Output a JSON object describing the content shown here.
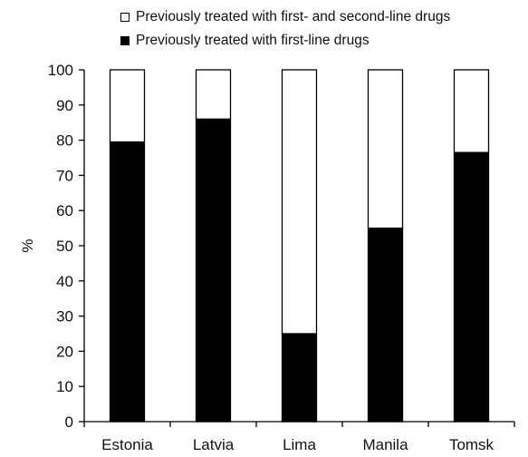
{
  "chart_data": {
    "type": "bar",
    "stacked": true,
    "categories": [
      "Estonia",
      "Latvia",
      "Lima",
      "Manila",
      "Tomsk"
    ],
    "series": [
      {
        "name": "Previously treated with first-line drugs",
        "color": "#000000",
        "values": [
          79.5,
          86,
          25,
          55,
          76.5
        ]
      },
      {
        "name": "Previously treated with first- and second-line drugs",
        "color": "#ffffff",
        "values": [
          20.5,
          14,
          75,
          45,
          23.5
        ]
      }
    ],
    "ylabel": "%",
    "ylim": [
      0,
      100
    ],
    "yticks": [
      0,
      10,
      20,
      30,
      40,
      50,
      60,
      70,
      80,
      90,
      100
    ],
    "legend": "top",
    "grid": false
  }
}
